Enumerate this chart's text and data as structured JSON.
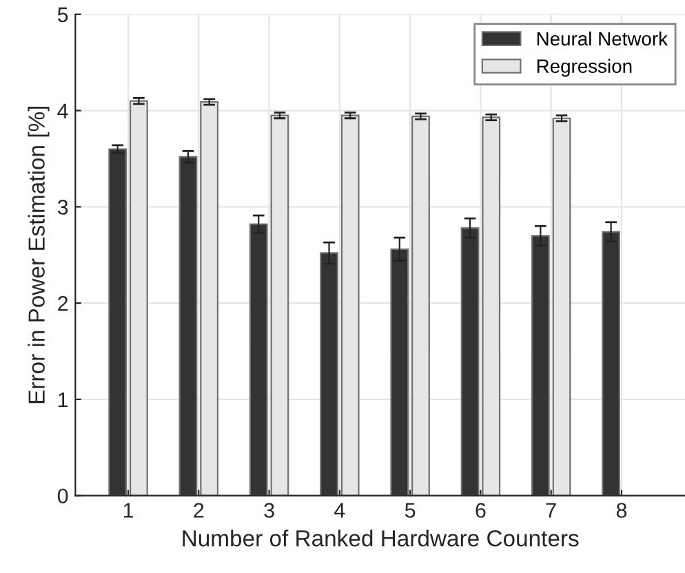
{
  "chart_data": {
    "type": "bar",
    "xlabel": "Number of Ranked Hardware Counters",
    "ylabel": "Error in Power Estimation [%]",
    "categories": [
      "1",
      "2",
      "3",
      "4",
      "5",
      "6",
      "7",
      "8"
    ],
    "series": [
      {
        "name": "Neural Network",
        "color": "#333333",
        "values": [
          3.6,
          3.52,
          2.82,
          2.52,
          2.56,
          2.78,
          2.7,
          2.74
        ],
        "errors": [
          0.04,
          0.06,
          0.09,
          0.11,
          0.12,
          0.1,
          0.1,
          0.1
        ]
      },
      {
        "name": "Regression",
        "color": "#e6e6e6",
        "values": [
          4.1,
          4.09,
          3.95,
          3.95,
          3.94,
          3.93,
          3.92,
          null
        ],
        "errors": [
          0.03,
          0.03,
          0.03,
          0.03,
          0.03,
          0.03,
          0.03,
          null
        ]
      }
    ],
    "ylim": [
      0,
      5
    ],
    "yticks": [
      0,
      1,
      2,
      3,
      4,
      5
    ],
    "grid": true,
    "legend": "top right"
  }
}
